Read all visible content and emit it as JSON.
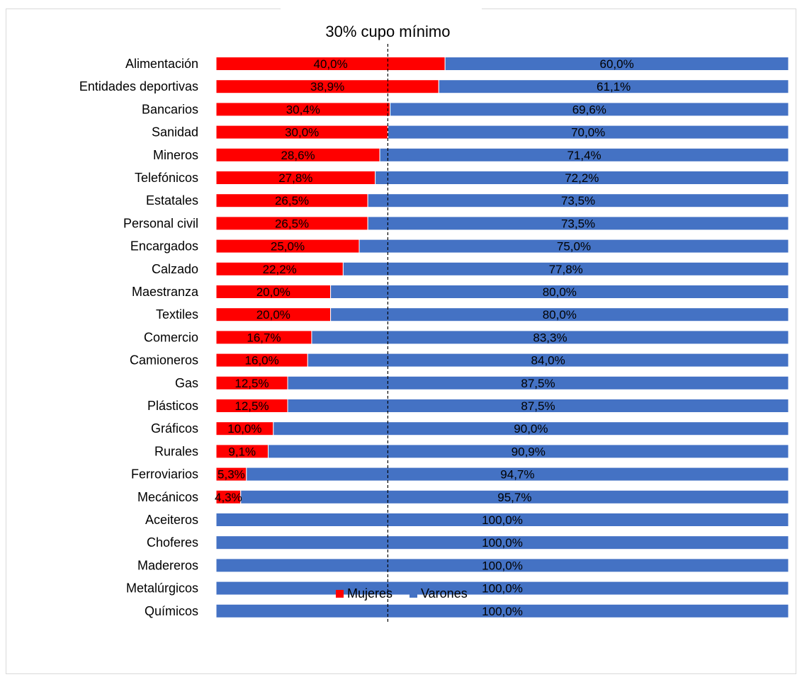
{
  "chart_data": {
    "type": "bar",
    "orientation": "horizontal",
    "stacked": "percent",
    "title": "",
    "annotation": "30% cupo mínimo",
    "reference_line": 30,
    "legend_position": "bottom",
    "grid": false,
    "xlim": [
      0,
      100
    ],
    "categories": [
      "Alimentación",
      "Entidades deportivas",
      "Bancarios",
      "Sanidad",
      "Mineros",
      "Telefónicos",
      "Estatales",
      "Personal civil",
      "Encargados",
      "Calzado",
      "Maestranza",
      "Textiles",
      "Comercio",
      "Camioneros",
      "Gas",
      "Plásticos",
      "Gráficos",
      "Rurales",
      "Ferroviarios",
      "Mecánicos",
      "Aceiteros",
      "Choferes",
      "Madereros",
      "Metalúrgicos",
      "Químicos"
    ],
    "series": [
      {
        "name": "Mujeres",
        "color": "#ff0000",
        "values": [
          40.0,
          38.9,
          30.4,
          30.0,
          28.6,
          27.8,
          26.5,
          26.5,
          25.0,
          22.2,
          20.0,
          20.0,
          16.7,
          16.0,
          12.5,
          12.5,
          10.0,
          9.1,
          5.3,
          4.3,
          0,
          0,
          0,
          0,
          0
        ],
        "labels": [
          "40,0%",
          "38,9%",
          "30,4%",
          "30,0%",
          "28,6%",
          "27,8%",
          "26,5%",
          "26,5%",
          "25,0%",
          "22,2%",
          "20,0%",
          "20,0%",
          "16,7%",
          "16,0%",
          "12,5%",
          "12,5%",
          "10,0%",
          "9,1%",
          "5,3%",
          "4,3%",
          "",
          "",
          "",
          "",
          ""
        ]
      },
      {
        "name": "Varones",
        "color": "#4472c4",
        "values": [
          60.0,
          61.1,
          69.6,
          70.0,
          71.4,
          72.2,
          73.5,
          73.5,
          75.0,
          77.8,
          80.0,
          80.0,
          83.3,
          84.0,
          87.5,
          87.5,
          90.0,
          90.9,
          94.7,
          95.7,
          100,
          100,
          100,
          100,
          100
        ],
        "labels": [
          "60,0%",
          "61,1%",
          "69,6%",
          "70,0%",
          "71,4%",
          "72,2%",
          "73,5%",
          "73,5%",
          "75,0%",
          "77,8%",
          "80,0%",
          "80,0%",
          "83,3%",
          "84,0%",
          "87,5%",
          "87,5%",
          "90,0%",
          "90,9%",
          "94,7%",
          "95,7%",
          "100,0%",
          "100,0%",
          "100,0%",
          "100,0%",
          "100,0%"
        ]
      }
    ]
  }
}
